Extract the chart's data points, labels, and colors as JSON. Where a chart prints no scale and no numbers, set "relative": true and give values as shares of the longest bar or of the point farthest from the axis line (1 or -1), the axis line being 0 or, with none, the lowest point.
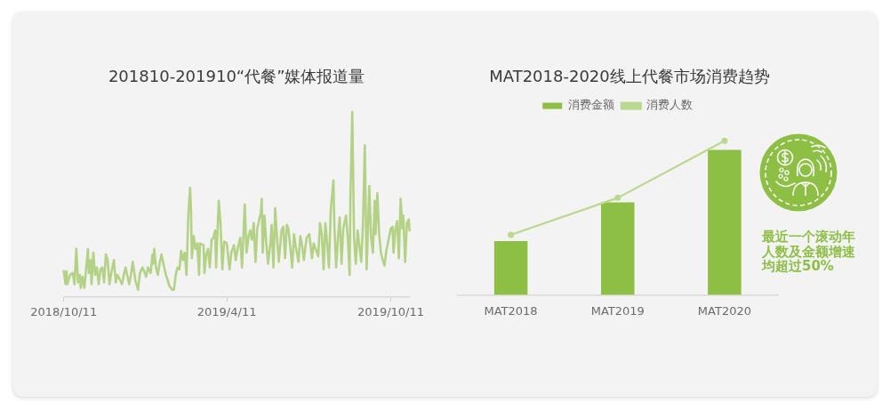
{
  "chart_data": [
    {
      "type": "line",
      "title": "201810-201910“代餐”媒体报道量",
      "relative": true,
      "color": "#b3d286",
      "xlim": [
        "2018-10-11",
        "2019-11-01"
      ],
      "xticks": [
        {
          "value": "2018-10-11",
          "label": "2018/10/11"
        },
        {
          "value": "2019-04-11",
          "label": "2019/4/11"
        },
        {
          "value": "2019-10-11",
          "label": "2019/10/11"
        }
      ],
      "x": [
        "2018-10-11",
        "2018-10-13",
        "2018-10-14",
        "2018-10-15",
        "2018-10-18",
        "2018-10-21",
        "2018-10-23",
        "2018-10-25",
        "2018-10-27",
        "2018-10-29",
        "2018-10-30",
        "2018-11-01",
        "2018-11-03",
        "2018-11-07",
        "2018-11-08",
        "2018-11-10",
        "2018-11-11",
        "2018-11-13",
        "2018-11-15",
        "2018-11-17",
        "2018-11-19",
        "2018-11-21",
        "2018-11-23",
        "2018-11-25",
        "2018-11-27",
        "2018-11-29",
        "2018-12-01",
        "2018-12-03",
        "2018-12-06",
        "2018-12-08",
        "2018-12-10",
        "2018-12-15",
        "2018-12-17",
        "2018-12-19",
        "2018-12-23",
        "2018-12-25",
        "2018-12-27",
        "2018-12-30",
        "2019-01-02",
        "2019-01-04",
        "2019-01-07",
        "2019-01-11",
        "2019-01-13",
        "2019-01-16",
        "2019-01-18",
        "2019-01-19",
        "2019-01-20",
        "2019-01-22",
        "2019-01-24",
        "2019-01-26",
        "2019-01-28",
        "2019-02-02",
        "2019-02-06",
        "2019-02-09",
        "2019-02-11",
        "2019-02-13",
        "2019-02-15",
        "2019-02-17",
        "2019-02-19",
        "2019-02-21",
        "2019-02-23",
        "2019-02-25",
        "2019-02-27",
        "2019-03-01",
        "2019-03-02",
        "2019-03-03",
        "2019-03-05",
        "2019-03-07",
        "2019-03-09",
        "2019-03-11",
        "2019-03-12",
        "2019-03-16",
        "2019-03-17",
        "2019-03-19",
        "2019-03-21",
        "2019-03-23",
        "2019-03-25",
        "2019-03-27",
        "2019-03-29",
        "2019-03-30",
        "2019-04-02",
        "2019-04-04",
        "2019-04-06",
        "2019-04-08",
        "2019-04-11",
        "2019-04-14",
        "2019-04-16",
        "2019-04-19",
        "2019-04-21",
        "2019-04-23",
        "2019-04-26",
        "2019-04-28",
        "2019-05-01",
        "2019-05-03",
        "2019-05-05",
        "2019-05-07",
        "2019-05-09",
        "2019-05-11",
        "2019-05-13",
        "2019-05-15",
        "2019-05-19",
        "2019-05-20",
        "2019-05-21",
        "2019-05-23",
        "2019-05-25",
        "2019-05-27",
        "2019-05-30",
        "2019-05-31",
        "2019-06-02",
        "2019-06-04",
        "2019-06-06",
        "2019-06-08",
        "2019-06-11",
        "2019-06-13",
        "2019-06-15",
        "2019-06-17",
        "2019-06-19",
        "2019-06-23",
        "2019-06-25",
        "2019-06-27",
        "2019-06-30",
        "2019-07-02",
        "2019-07-04",
        "2019-07-06",
        "2019-07-09",
        "2019-07-12",
        "2019-07-15",
        "2019-07-17",
        "2019-07-22",
        "2019-07-24",
        "2019-07-26",
        "2019-07-28",
        "2019-07-30",
        "2019-08-01",
        "2019-08-03",
        "2019-08-05",
        "2019-08-08",
        "2019-08-09",
        "2019-08-11",
        "2019-08-13",
        "2019-08-15",
        "2019-08-17",
        "2019-08-19",
        "2019-08-22",
        "2019-08-24",
        "2019-08-26",
        "2019-08-27",
        "2019-08-29",
        "2019-08-31",
        "2019-09-02",
        "2019-09-04",
        "2019-09-08",
        "2019-09-10",
        "2019-09-12",
        "2019-09-14",
        "2019-09-15",
        "2019-09-17",
        "2019-09-19",
        "2019-09-21",
        "2019-09-23",
        "2019-09-24",
        "2019-09-26",
        "2019-09-28",
        "2019-09-30",
        "2019-10-02",
        "2019-10-04",
        "2019-10-06",
        "2019-10-11",
        "2019-10-13",
        "2019-10-14",
        "2019-10-16",
        "2019-10-18",
        "2019-10-20",
        "2019-10-22",
        "2019-10-24",
        "2019-10-25",
        "2019-10-27",
        "2019-10-29",
        "2019-10-31",
        "2019-11-01"
      ],
      "values": [
        0.14,
        0.07,
        0.14,
        0.07,
        0.12,
        0.13,
        0.07,
        0.26,
        0.08,
        0.12,
        0.05,
        0.11,
        0.05,
        0.26,
        0.13,
        0.2,
        0.07,
        0.24,
        0.12,
        0.16,
        0.07,
        0.15,
        0.16,
        0.08,
        0.23,
        0.2,
        0.07,
        0.13,
        0.2,
        0.08,
        0.12,
        0.07,
        0.12,
        0.16,
        0.07,
        0.12,
        0.19,
        0.09,
        0.04,
        0.13,
        0.16,
        0.11,
        0.16,
        0.13,
        0.23,
        0.18,
        0.26,
        0.16,
        0.12,
        0.18,
        0.23,
        0.12,
        0.06,
        0.04,
        0.04,
        0.12,
        0.16,
        0.15,
        0.25,
        0.2,
        0.24,
        0.12,
        0.44,
        0.59,
        0.47,
        0.21,
        0.33,
        0.26,
        0.29,
        0.12,
        0.29,
        0.28,
        0.13,
        0.23,
        0.26,
        0.16,
        0.31,
        0.32,
        0.36,
        0.16,
        0.52,
        0.39,
        0.15,
        0.3,
        0.29,
        0.15,
        0.24,
        0.28,
        0.2,
        0.26,
        0.32,
        0.16,
        0.5,
        0.24,
        0.32,
        0.36,
        0.31,
        0.4,
        0.19,
        0.37,
        0.46,
        0.53,
        0.24,
        0.44,
        0.29,
        0.18,
        0.31,
        0.39,
        0.16,
        0.48,
        0.32,
        0.19,
        0.36,
        0.38,
        0.21,
        0.39,
        0.36,
        0.16,
        0.34,
        0.27,
        0.19,
        0.33,
        0.28,
        0.2,
        0.32,
        0.34,
        0.21,
        0.29,
        0.22,
        0.4,
        0.34,
        0.15,
        0.4,
        0.29,
        0.16,
        0.47,
        0.63,
        0.39,
        0.16,
        0.32,
        0.43,
        0.18,
        0.37,
        0.44,
        0.32,
        0.12,
        0.56,
        1,
        0.32,
        0.18,
        0.36,
        0.19,
        0.4,
        0.82,
        0.15,
        0.29,
        0.6,
        0.32,
        0.24,
        0.52,
        0.34,
        0.56,
        0.34,
        0.24,
        0.2,
        0.17,
        0.25,
        0.37,
        0.38,
        0.24,
        0.36,
        0.41,
        0.21,
        0.53,
        0.37,
        0.44,
        0.19,
        0.4,
        0.42,
        0.36
      ]
    },
    {
      "type": "bar",
      "title": "MAT2018-2020线上代餐市场消费趋势",
      "relative": true,
      "legend": "top",
      "marker": "circle",
      "categories": [
        "MAT2018",
        "MAT2019",
        "MAT2020"
      ],
      "series": [
        {
          "name": "消费金额",
          "color": "#8cbf44",
          "values": [
            0.35,
            0.6,
            0.94
          ]
        },
        {
          "name": "消费人数",
          "type": "line",
          "color": "#b9d98f",
          "values": [
            0.39,
            0.63,
            1
          ]
        }
      ],
      "annotations": [
        "最近一个滚动年人数及金额增速均超过50%"
      ]
    }
  ]
}
